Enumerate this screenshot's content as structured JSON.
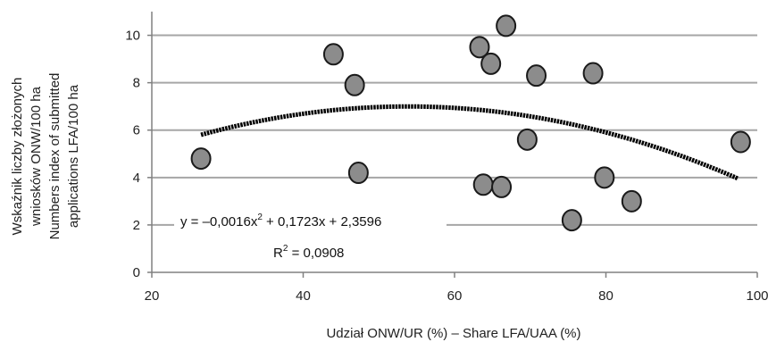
{
  "chart_data": {
    "type": "scatter",
    "xlabel": "Udział ONW/UR (%) – Share LFA/UAA (%)",
    "ylabel_lines": [
      "Wskaźnik liczby złożonych",
      "wniosków ONW/100 ha",
      "Numbers index of submitted",
      "applications LFA/100 ha"
    ],
    "xlim": [
      20,
      100
    ],
    "ylim": [
      0,
      11
    ],
    "x_ticks": [
      "20",
      "40",
      "60",
      "80",
      "100"
    ],
    "y_ticks": [
      "0",
      "2",
      "4",
      "6",
      "8",
      "10"
    ],
    "grid": "horizontal",
    "points": [
      {
        "x": 26.5,
        "y": 4.8
      },
      {
        "x": 44.0,
        "y": 9.2
      },
      {
        "x": 46.8,
        "y": 7.9
      },
      {
        "x": 47.3,
        "y": 4.2
      },
      {
        "x": 63.3,
        "y": 9.5
      },
      {
        "x": 63.8,
        "y": 3.7
      },
      {
        "x": 64.8,
        "y": 8.8
      },
      {
        "x": 66.2,
        "y": 3.6
      },
      {
        "x": 66.8,
        "y": 10.4
      },
      {
        "x": 69.6,
        "y": 5.6
      },
      {
        "x": 70.8,
        "y": 8.3
      },
      {
        "x": 75.5,
        "y": 2.2
      },
      {
        "x": 78.3,
        "y": 8.4
      },
      {
        "x": 79.8,
        "y": 4.0
      },
      {
        "x": 83.4,
        "y": 3.0
      },
      {
        "x": 97.8,
        "y": 5.5
      }
    ],
    "trendline": {
      "type": "polynomial",
      "a": -0.0016,
      "b": 0.1723,
      "c": 2.3596,
      "x_range": [
        26.5,
        97.5
      ],
      "equation_prefix": "y = –0,0016x",
      "equation_suffix": " + 0,1723x + 2,3596",
      "r2_prefix": "R",
      "r2_suffix": " = 0,0908",
      "superscript": "2"
    },
    "colors": {
      "marker_fill": "#8c8c8c",
      "marker_stroke": "#1a1a1a",
      "trend": "#000000",
      "grid": "#a6a6a6",
      "axis": "#808080"
    }
  }
}
